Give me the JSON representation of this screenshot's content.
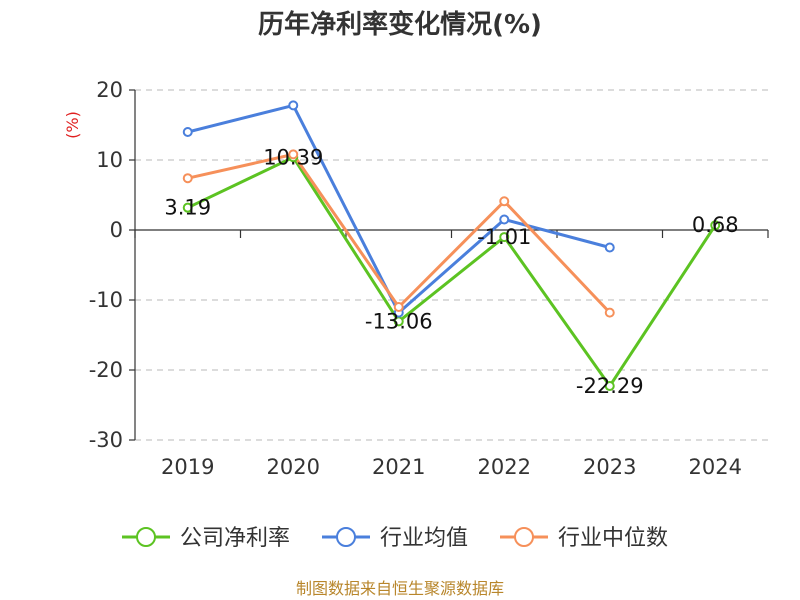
{
  "chart_data": {
    "type": "line",
    "title": "历年净利率变化情况(%)",
    "ylabel": "(%)",
    "xlabel": "",
    "categories": [
      "2019",
      "2020",
      "2021",
      "2022",
      "2023",
      "2024"
    ],
    "ylim": [
      -30,
      20
    ],
    "yticks": [
      20,
      10,
      0,
      -10,
      -20,
      -30
    ],
    "grid": true,
    "legend_position": "bottom",
    "series": [
      {
        "name": "公司净利率",
        "color": "#5cc322",
        "values": [
          3.19,
          10.39,
          -13.06,
          -1.01,
          -22.29,
          0.68
        ],
        "labels": [
          "3.19",
          "10.39",
          "-13.06",
          "-1.01",
          "-22.29",
          "0.68"
        ]
      },
      {
        "name": "行业均值",
        "color": "#4a7fdc",
        "values": [
          14.0,
          17.8,
          -11.8,
          1.5,
          -2.5,
          null
        ]
      },
      {
        "name": "行业中位数",
        "color": "#f6905a",
        "values": [
          7.4,
          10.8,
          -11.0,
          4.1,
          -11.8,
          null
        ]
      }
    ]
  },
  "source": "制图数据来自恒生聚源数据库"
}
